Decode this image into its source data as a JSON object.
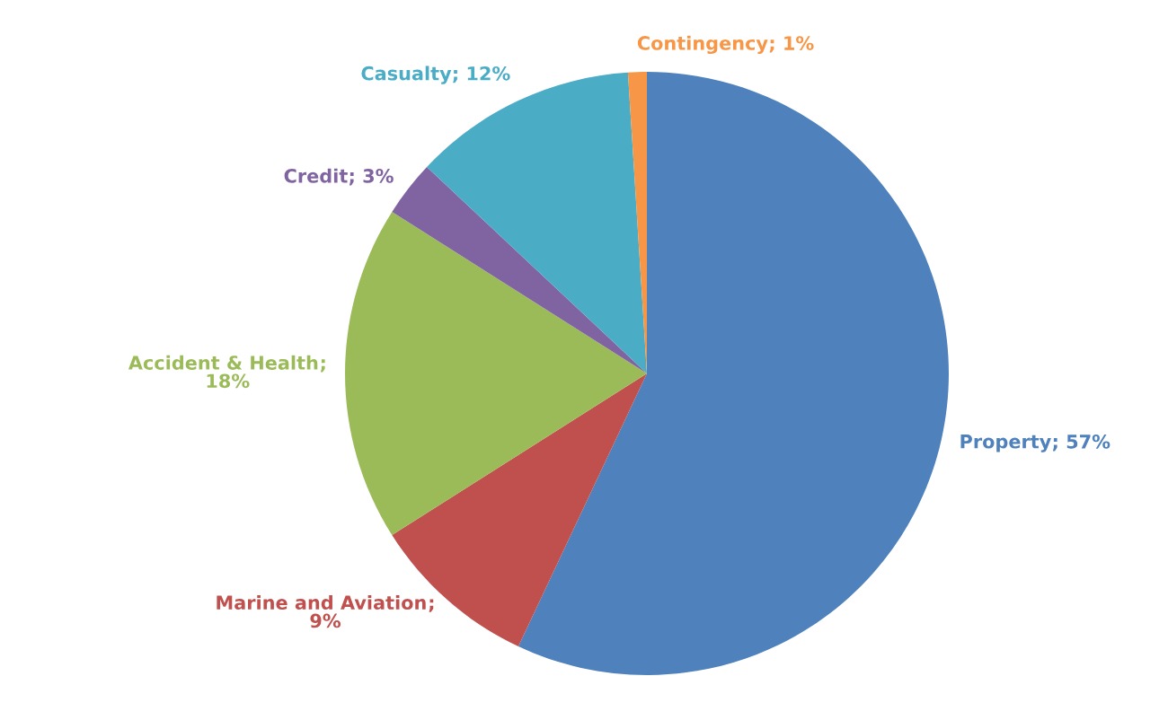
{
  "chart_data": {
    "type": "pie",
    "categories": [
      "Property",
      "Marine and Aviation",
      "Accident & Health",
      "Credit",
      "Casualty",
      "Contingency"
    ],
    "values": [
      57,
      9,
      18,
      3,
      12,
      1
    ],
    "colors": [
      "#4f81bd",
      "#c0504d",
      "#9bbb59",
      "#8064a2",
      "#4bacc6",
      "#f79646"
    ],
    "value_labels": [
      "; 57%",
      "; 9%",
      "; 18%",
      "; 3%",
      "; 12%",
      "; 1%"
    ]
  }
}
